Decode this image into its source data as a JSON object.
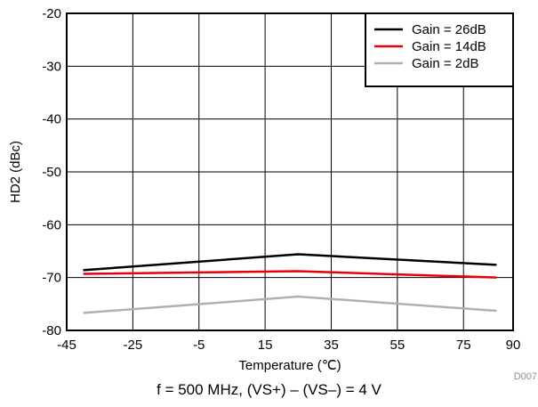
{
  "chart_data": {
    "type": "line",
    "xlabel": "Temperature (℃)",
    "ylabel": "HD2 (dBc)",
    "xlim": [
      -45,
      90
    ],
    "ylim": [
      -80,
      -20
    ],
    "x_ticks": [
      -45,
      -25,
      -5,
      15,
      35,
      55,
      75,
      90
    ],
    "y_ticks": [
      -20,
      -30,
      -40,
      -50,
      -60,
      -70,
      -80
    ],
    "grid": true,
    "legend_position": "top-right",
    "series": [
      {
        "name": "Gain = 26dB",
        "color": "#000000",
        "x": [
          -40,
          25,
          85
        ],
        "y": [
          -68.6,
          -65.6,
          -67.6
        ]
      },
      {
        "name": "Gain = 14dB",
        "color": "#e8000b",
        "x": [
          -40,
          25,
          85
        ],
        "y": [
          -69.3,
          -68.8,
          -70.0
        ]
      },
      {
        "name": "Gain = 2dB",
        "color": "#b0b0b0",
        "x": [
          -40,
          25,
          85
        ],
        "y": [
          -76.7,
          -73.6,
          -76.3
        ]
      }
    ],
    "figure_id": "D007",
    "caption": "f = 500 MHz, (VS+) – (VS–) = 4 V"
  }
}
